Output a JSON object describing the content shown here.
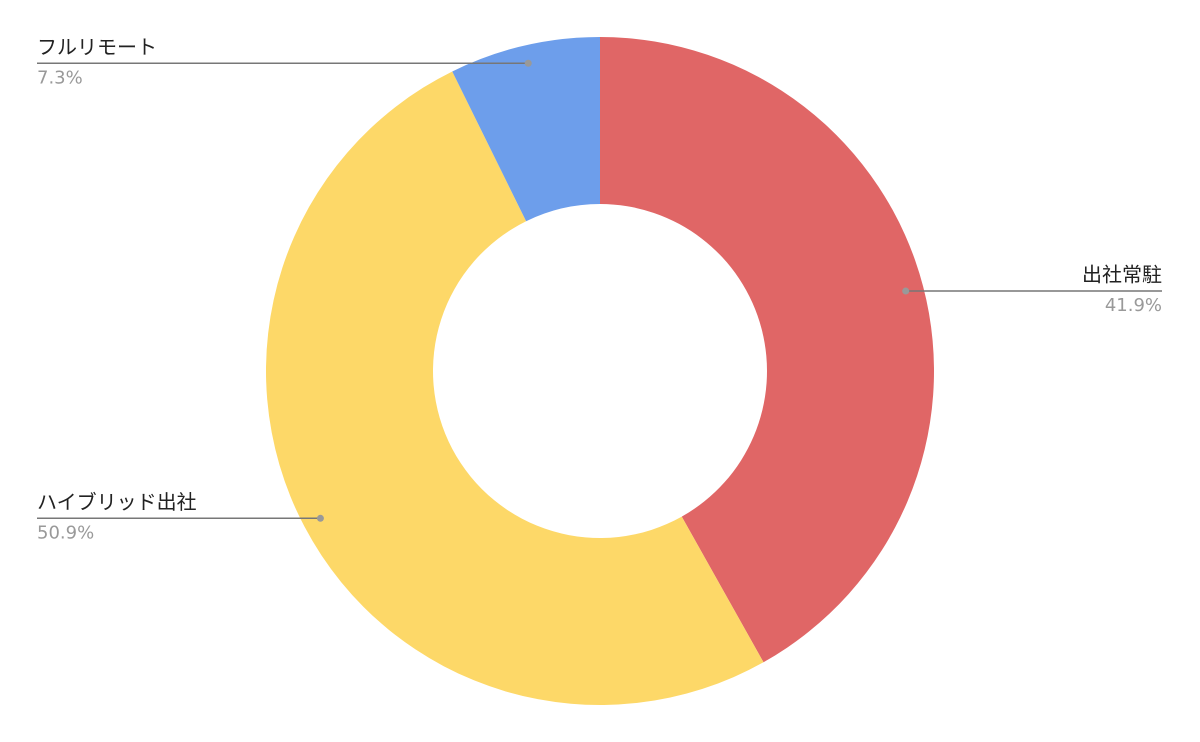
{
  "chart_data": {
    "type": "donut",
    "categories": [
      "出社常駐",
      "ハイブリッド出社",
      "フルリモート"
    ],
    "values": [
      41.9,
      50.9,
      7.3
    ],
    "value_labels": [
      "41.9%",
      "50.9%",
      "7.3%"
    ],
    "colors": [
      "#e06666",
      "#fdd868",
      "#6d9eeb"
    ]
  }
}
